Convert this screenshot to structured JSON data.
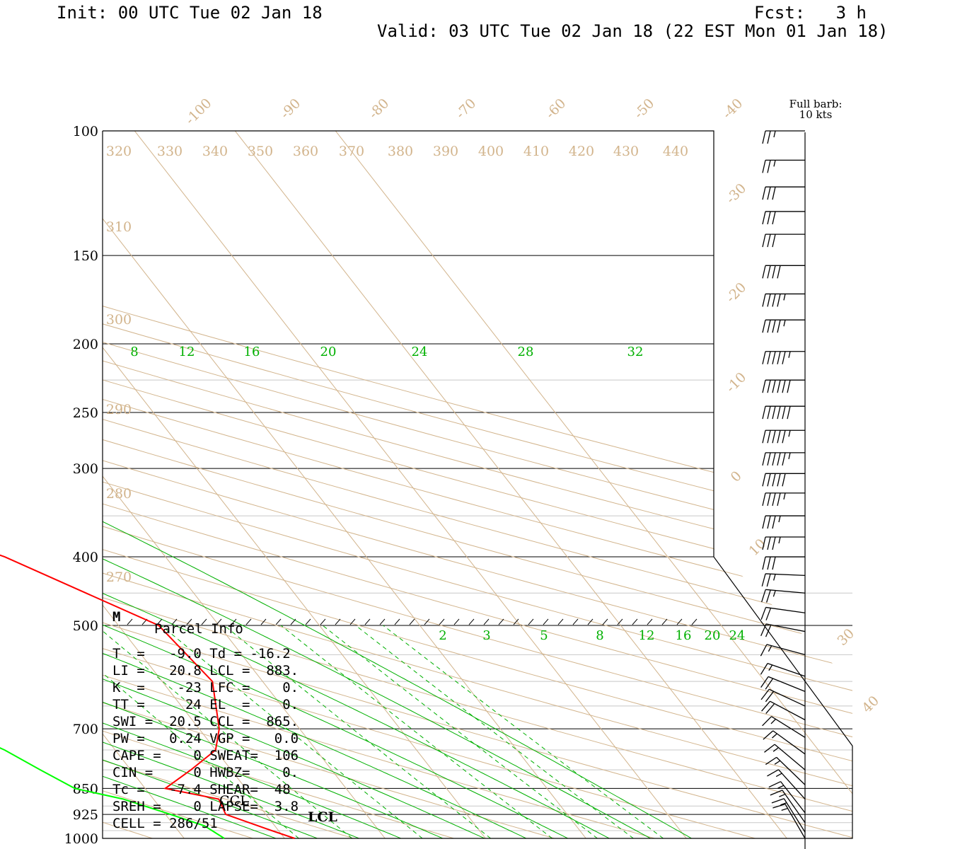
{
  "header": {
    "init": "Init: 00 UTC Tue 02 Jan 18",
    "fcst": "Fcst:   3 h",
    "valid": "Valid: 03 UTC Tue 02 Jan 18 (22 EST Mon 01 Jan 18)"
  },
  "barb_legend": {
    "line1": "Full barb:",
    "line2": "10 kts"
  },
  "colors": {
    "temperature": "#ff0000",
    "dewpoint": "#00ff00",
    "isotherms": "#d2b48c",
    "mixing_ratio": "#00b000",
    "grid": "#000000",
    "wind": "#000000"
  },
  "chart_data": {
    "type": "line",
    "title": "",
    "ylabel": "",
    "xlabel": "",
    "y_scale": "log-pressure",
    "ylim": [
      1000,
      100
    ],
    "pressure_ticks": [
      "100",
      "150",
      "200",
      "250",
      "300",
      "400",
      "500",
      "700",
      "850",
      "925",
      "1000"
    ],
    "isotherm_labels": [
      "-100",
      "-90",
      "-80",
      "-70",
      "-60",
      "-50",
      "-40",
      "-30",
      "-20",
      "-10",
      "0",
      "10",
      "30",
      "40"
    ],
    "theta_labels": [
      "320",
      "330",
      "340",
      "350",
      "360",
      "370",
      "380",
      "390",
      "400",
      "410",
      "420",
      "430",
      "440",
      "310",
      "300",
      "290",
      "280",
      "270"
    ],
    "mixing_ratio_labels_upper": [
      "8",
      "12",
      "16",
      "20",
      "24",
      "28",
      "32"
    ],
    "mixing_ratio_labels_lower": [
      "2",
      "3",
      "5",
      "8",
      "12",
      "16",
      "20",
      "24"
    ],
    "series": [
      {
        "name": "",
        "color": "#ff0000",
        "points": [
          [
            1000,
            -9
          ],
          [
            970,
            -11
          ],
          [
            925,
            -14
          ],
          [
            880,
            -13.5
          ],
          [
            850,
            -18
          ],
          [
            800,
            -14
          ],
          [
            750,
            -10
          ],
          [
            700,
            -8
          ],
          [
            600,
            -5
          ],
          [
            500,
            -6
          ],
          [
            400,
            -16
          ],
          [
            350,
            -24
          ],
          [
            300,
            -31
          ],
          [
            250,
            -38
          ],
          [
            200,
            -45
          ],
          [
            150,
            -53
          ],
          [
            100,
            -60
          ]
        ]
      },
      {
        "name": "",
        "color": "#00ff00",
        "points": [
          [
            1000,
            -16
          ],
          [
            960,
            -17
          ],
          [
            925,
            -19.5
          ],
          [
            880,
            -23
          ],
          [
            850,
            -27
          ],
          [
            800,
            -29
          ],
          [
            750,
            -31
          ],
          [
            700,
            -34
          ],
          [
            600,
            -34
          ],
          [
            500,
            -39
          ],
          [
            400,
            -46
          ],
          [
            350,
            -55
          ],
          [
            300,
            -61
          ],
          [
            250,
            -62
          ],
          [
            225,
            -62
          ],
          [
            200,
            -68
          ],
          [
            175,
            -75
          ],
          [
            160,
            -77
          ],
          [
            150,
            -80
          ],
          [
            100,
            -90
          ]
        ]
      }
    ],
    "wind_barbs": [
      {
        "p": 100,
        "kt": 25
      },
      {
        "p": 110,
        "kt": 25
      },
      {
        "p": 120,
        "kt": 30
      },
      {
        "p": 130,
        "kt": 30
      },
      {
        "p": 140,
        "kt": 30
      },
      {
        "p": 155,
        "kt": 40
      },
      {
        "p": 170,
        "kt": 45
      },
      {
        "p": 185,
        "kt": 45
      },
      {
        "p": 205,
        "kt": 55
      },
      {
        "p": 225,
        "kt": 60
      },
      {
        "p": 245,
        "kt": 60
      },
      {
        "p": 265,
        "kt": 55
      },
      {
        "p": 285,
        "kt": 55
      },
      {
        "p": 305,
        "kt": 50
      },
      {
        "p": 325,
        "kt": 45
      },
      {
        "p": 350,
        "kt": 35
      },
      {
        "p": 375,
        "kt": 35
      },
      {
        "p": 400,
        "kt": 30
      },
      {
        "p": 425,
        "kt": 25
      },
      {
        "p": 450,
        "kt": 25
      },
      {
        "p": 480,
        "kt": 20
      },
      {
        "p": 510,
        "kt": 20
      },
      {
        "p": 550,
        "kt": 15
      },
      {
        "p": 590,
        "kt": 15
      },
      {
        "p": 620,
        "kt": 20
      },
      {
        "p": 650,
        "kt": 20
      },
      {
        "p": 680,
        "kt": 20
      },
      {
        "p": 720,
        "kt": 15
      },
      {
        "p": 760,
        "kt": 15
      },
      {
        "p": 800,
        "kt": 15
      },
      {
        "p": 840,
        "kt": 15
      },
      {
        "p": 880,
        "kt": 15
      },
      {
        "p": 920,
        "kt": 15
      },
      {
        "p": 950,
        "kt": 15
      },
      {
        "p": 980,
        "kt": 15
      },
      {
        "p": 1000,
        "kt": 15
      }
    ],
    "marker_M": "M",
    "lcl_label": "LCL",
    "ccl_label": "CCL"
  },
  "parcel_info": {
    "title": "Parcel Info",
    "rows": [
      "T  =   -9.0 Td = -16.2",
      "LI =   20.8 LCL =  883.",
      "K  =    -23 LFC =    0.",
      "TT =     24 EL  =    0.",
      "SWI =  20.5 CCL =  865.",
      "PW =   0.24 VGP =   0.0",
      "CAPE =    0 SWEAT=  106",
      "CIN =     0 HWBZ=    0.",
      "Tc =   -7.4 SHEAR=  48",
      "SREH =    0 LAPSE=  3.8",
      "CELL = 286/51"
    ]
  }
}
